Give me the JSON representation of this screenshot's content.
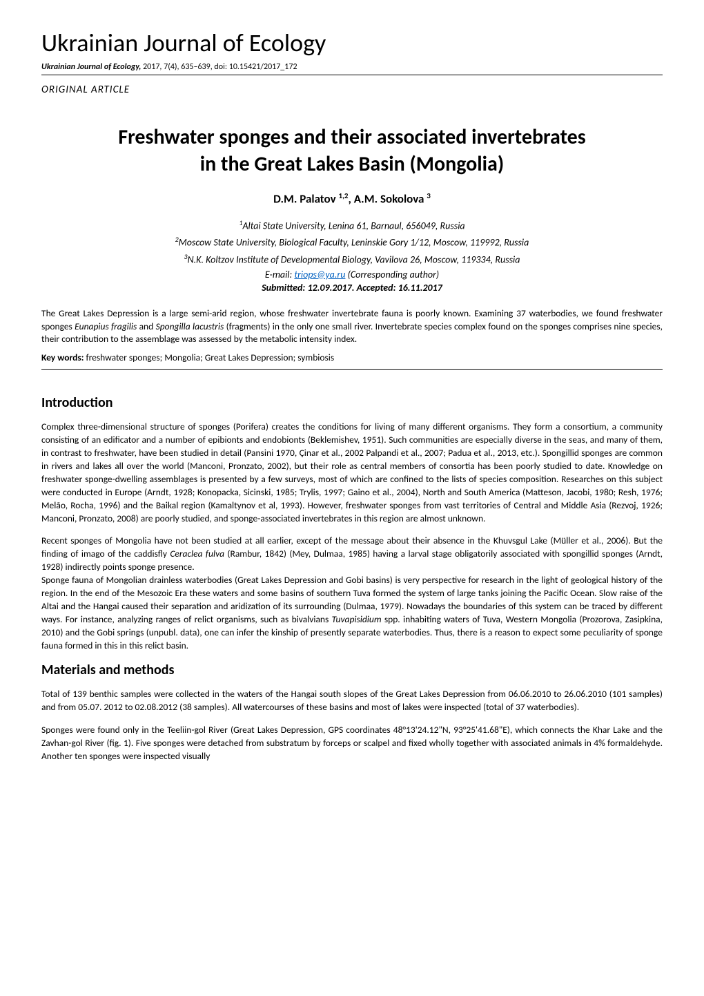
{
  "journal": {
    "title": "Ukrainian Journal of Ecology",
    "citation_journal": "Ukrainian Journal of Ecology,",
    "citation_rest": " 2017, 7(4), 635–639, doi: 10.15421/2017_172",
    "article_type": "ORIGINAL ARTICLE"
  },
  "article": {
    "title_line1": "Freshwater sponges and their associated invertebrates",
    "title_line2": "in the Great Lakes Basin (Mongolia)",
    "authors_html": "D.M. Palatov <sup>1,2</sup>, A.M. Sokolova <sup>3</sup>",
    "affiliations": [
      {
        "sup": "1",
        "text": "Altai State University, Lenina 61, Barnaul, 656049, Russia"
      },
      {
        "sup": "2",
        "text": "Moscow State University, Biological Faculty, Leninskie Gory 1/12, Moscow, 119992, Russia"
      },
      {
        "sup": "3",
        "text": "N.K. Koltzov Institute of Developmental Biology, Vavilova 26, Moscow, 119334, Russia"
      }
    ],
    "email_prefix": "E-mail: ",
    "email": "triops@ya.ru",
    "email_suffix": " (Corresponding author)",
    "submitted": "Submitted: 12.09.2017. Accepted: 16.11.2017",
    "abstract_pre": "The Great Lakes Depression is a large semi-arid region, whose freshwater invertebrate fauna is poorly known. Examining 37 waterbodies, we found freshwater sponges ",
    "abstract_sp1": "Eunapius fragilis",
    "abstract_mid": " and ",
    "abstract_sp2": "Spongilla lacustris",
    "abstract_post": " (fragments) in the only one small river. Invertebrate species complex found on the sponges comprises nine species, their contribution to the assemblage was assessed by the metabolic intensity index.",
    "keywords_label": "Key words:",
    "keywords_text": " freshwater sponges; Mongolia; Great Lakes Depression; symbiosis"
  },
  "sections": {
    "intro_heading": "Introduction",
    "intro_p1": "Complex three-dimensional structure of sponges (Porifera) creates the conditions for living of many different organisms. They form a consortium, a community consisting of an edificator and a number of epibionts and endobionts (Beklemishev, 1951). Such communities are especially diverse in the seas, and many of them, in contrast to freshwater, have been studied in detail (Pansini 1970, Çinar et al., 2002 Palpandi et al., 2007; Padua et al., 2013, etc.). Spongillid sponges are common in rivers and lakes all over the world (Manconi, Pronzato, 2002), but their role as central members of consortia has been poorly studied to date. Knowledge on freshwater sponge-dwelling assemblages is presented by a few surveys, most of which are confined to the lists of species composition. Researches on this subject were conducted in Europe (Arndt, 1928; Konopacka, Sicinski, 1985; Trylis, 1997; Gaino et al., 2004), North and South America (Matteson, Jacobi, 1980; Resh, 1976; Melão, Rocha, 1996) and the Baikal region (Kamaltynov et al, 1993). However, freshwater sponges from vast territories of Central and Middle Asia (Rezvoj, 1926; Manconi, Pronzato, 2008) are poorly studied, and sponge-associated invertebrates in this region are almost unknown.",
    "intro_p2_pre": "Recent sponges of Mongolia have not been studied at all earlier, except of the message about their absence in the Khuvsgul Lake (Müller et al., 2006). But the finding of imago of the caddisfly ",
    "intro_p2_sp": "Ceraclea fulva",
    "intro_p2_post": " (Rambur, 1842) (Mey, Dulmaa, 1985) having a larval stage obligatorily associated with spongillid sponges (Arndt, 1928) indirectly points sponge presence.",
    "intro_p3_pre": "Sponge fauna of Mongolian drainless waterbodies (Great Lakes Depression and Gobi basins) is very perspective for research in the light of geological history of the region. In the end of the Mesozoic Era these waters and some basins of southern Tuva formed the system of large tanks joining the Pacific Ocean. Slow raise of the Altai and the Hangai caused their separation and aridization of its surrounding (Dulmaa, 1979). Nowadays the boundaries of this system can be traced by different ways. For instance, analyzing ranges of relict organisms, such as bivalvians ",
    "intro_p3_sp": "Tuvapisidium",
    "intro_p3_post": " spp. inhabiting waters of Tuva, Western Mongolia (Prozorova, Zasipkina, 2010) and the Gobi springs (unpubl. data), one can infer the kinship of presently separate waterbodies. Thus, there is a reason to expect some peculiarity of sponge fauna formed in this in this relict basin.",
    "methods_heading": "Materials and methods",
    "methods_p1": "Total of 139 benthic samples were collected in the waters of the Hangai south slopes of the Great Lakes Depression from 06.06.2010 to 26.06.2010 (101 samples) and from 05.07. 2012 to 02.08.2012 (38 samples). All watercourses of these basins and most of lakes were inspected (total of 37 waterbodies).",
    "methods_p2": "Sponges were found only in the Teeliin-gol River (Great Lakes Depression, GPS coordinates 48°13'24.12\"N, 93°25'41.68\"E), which connects the Khar Lake and the Zavhan-gol River (fig. 1). Five sponges were detached from substratum by forceps or scalpel and fixed wholly together with associated animals in 4% formaldehyde. Another ten sponges were inspected visually"
  }
}
